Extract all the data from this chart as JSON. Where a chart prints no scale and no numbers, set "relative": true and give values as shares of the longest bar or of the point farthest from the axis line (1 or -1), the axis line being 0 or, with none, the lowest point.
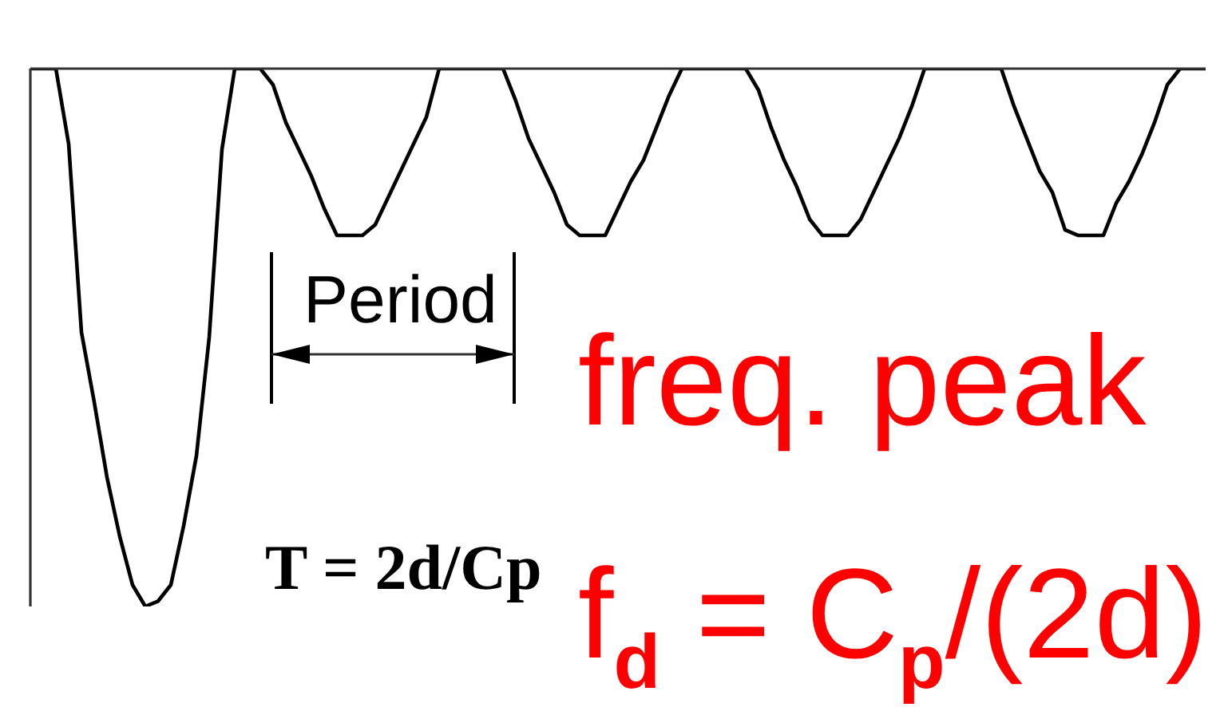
{
  "chart_data": {
    "type": "line",
    "relative": true,
    "marker": "none",
    "color": "#000000",
    "categories": [
      null,
      null,
      null,
      null,
      null,
      null,
      null,
      null,
      null,
      null,
      null,
      null,
      null,
      null,
      null,
      null,
      null,
      null,
      null,
      null,
      null,
      null,
      null,
      null,
      null,
      null,
      null,
      null,
      null,
      null,
      null,
      null,
      null,
      null,
      null,
      null,
      null,
      null,
      null,
      null,
      null,
      null,
      null,
      null,
      null,
      null,
      null,
      null,
      null,
      null,
      null,
      null,
      null,
      null,
      null,
      null,
      null,
      null,
      null,
      null,
      null,
      null,
      null,
      null,
      null,
      null,
      null,
      null,
      null,
      null,
      null,
      null,
      null,
      null,
      null,
      null,
      null,
      null,
      null,
      null,
      null,
      null,
      null,
      null,
      null,
      null,
      null,
      null,
      null,
      null,
      null,
      null,
      null
    ],
    "values": [
      0,
      0,
      0,
      -0.14,
      -0.49,
      -0.62,
      -0.76,
      -0.87,
      -0.96,
      -1,
      -0.99,
      -0.96,
      -0.85,
      -0.72,
      -0.5,
      -0.15,
      0,
      0,
      0,
      -0.03,
      -0.1,
      -0.15,
      -0.2,
      -0.26,
      -0.31,
      -0.31,
      -0.31,
      -0.29,
      -0.24,
      -0.19,
      -0.14,
      -0.09,
      0,
      0,
      0,
      0,
      0,
      0,
      -0.06,
      -0.13,
      -0.18,
      -0.23,
      -0.29,
      -0.31,
      -0.31,
      -0.31,
      -0.26,
      -0.21,
      -0.17,
      -0.11,
      -0.05,
      0,
      0,
      0,
      0,
      0,
      0,
      -0.04,
      -0.11,
      -0.17,
      -0.22,
      -0.28,
      -0.31,
      -0.31,
      -0.31,
      -0.28,
      -0.23,
      -0.18,
      -0.13,
      -0.07,
      0,
      0,
      0,
      0,
      0,
      0,
      0,
      -0.07,
      -0.13,
      -0.19,
      -0.23,
      -0.3,
      -0.31,
      -0.31,
      -0.31,
      -0.25,
      -0.21,
      -0.16,
      -0.1,
      -0.03,
      0,
      0,
      0
    ],
    "annotations": [
      "Period",
      "freq. peak",
      "f$_{d}$ = C$_{p}$/(2d)",
      "T = 2d/Cp"
    ]
  }
}
